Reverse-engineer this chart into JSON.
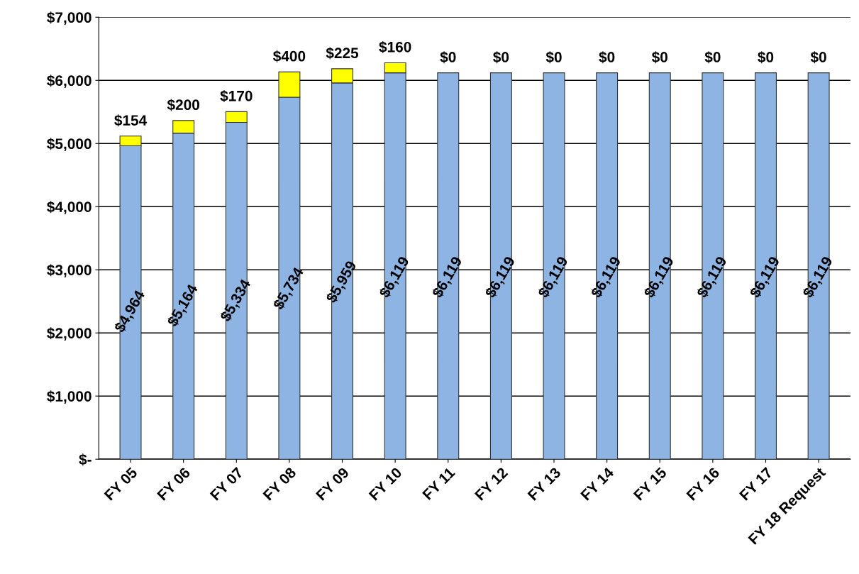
{
  "chart_data": {
    "type": "bar",
    "stacked": true,
    "categories": [
      "FY 05",
      "FY 06",
      "FY 07",
      "FY 08",
      "FY 09",
      "FY 10",
      "FY 11",
      "FY 12",
      "FY 13",
      "FY 14",
      "FY 15",
      "FY 16",
      "FY 17",
      "FY 18 Request"
    ],
    "series": [
      {
        "color": "#8db4e2",
        "values": [
          4964,
          5164,
          5334,
          5734,
          5959,
          6119,
          6119,
          6119,
          6119,
          6119,
          6119,
          6119,
          6119,
          6119
        ],
        "value_labels": [
          "$4,964",
          "$5,164",
          "$5,334",
          "$5,734",
          "$5,959",
          "$6,119",
          "$6,119",
          "$6,119",
          "$6,119",
          "$6,119",
          "$6,119",
          "$6,119",
          "$6,119",
          "$6,119"
        ]
      },
      {
        "color": "#ffff00",
        "values": [
          154,
          200,
          170,
          400,
          225,
          160,
          0,
          0,
          0,
          0,
          0,
          0,
          0,
          0
        ],
        "value_labels": [
          "$154",
          "$200",
          "$170",
          "$400",
          "$225",
          "$160",
          "$0",
          "$0",
          "$0",
          "$0",
          "$0",
          "$0",
          "$0",
          "$0"
        ]
      }
    ],
    "ylim": [
      0,
      7000
    ],
    "yticks": [
      {
        "value": 0,
        "label": "$-"
      },
      {
        "value": 1000,
        "label": "$1,000"
      },
      {
        "value": 2000,
        "label": "$2,000"
      },
      {
        "value": 3000,
        "label": "$3,000"
      },
      {
        "value": 4000,
        "label": "$4,000"
      },
      {
        "value": 5000,
        "label": "$5,000"
      },
      {
        "value": 6000,
        "label": "$6,000"
      },
      {
        "value": 7000,
        "label": "$7,000"
      }
    ],
    "grid": "y"
  }
}
